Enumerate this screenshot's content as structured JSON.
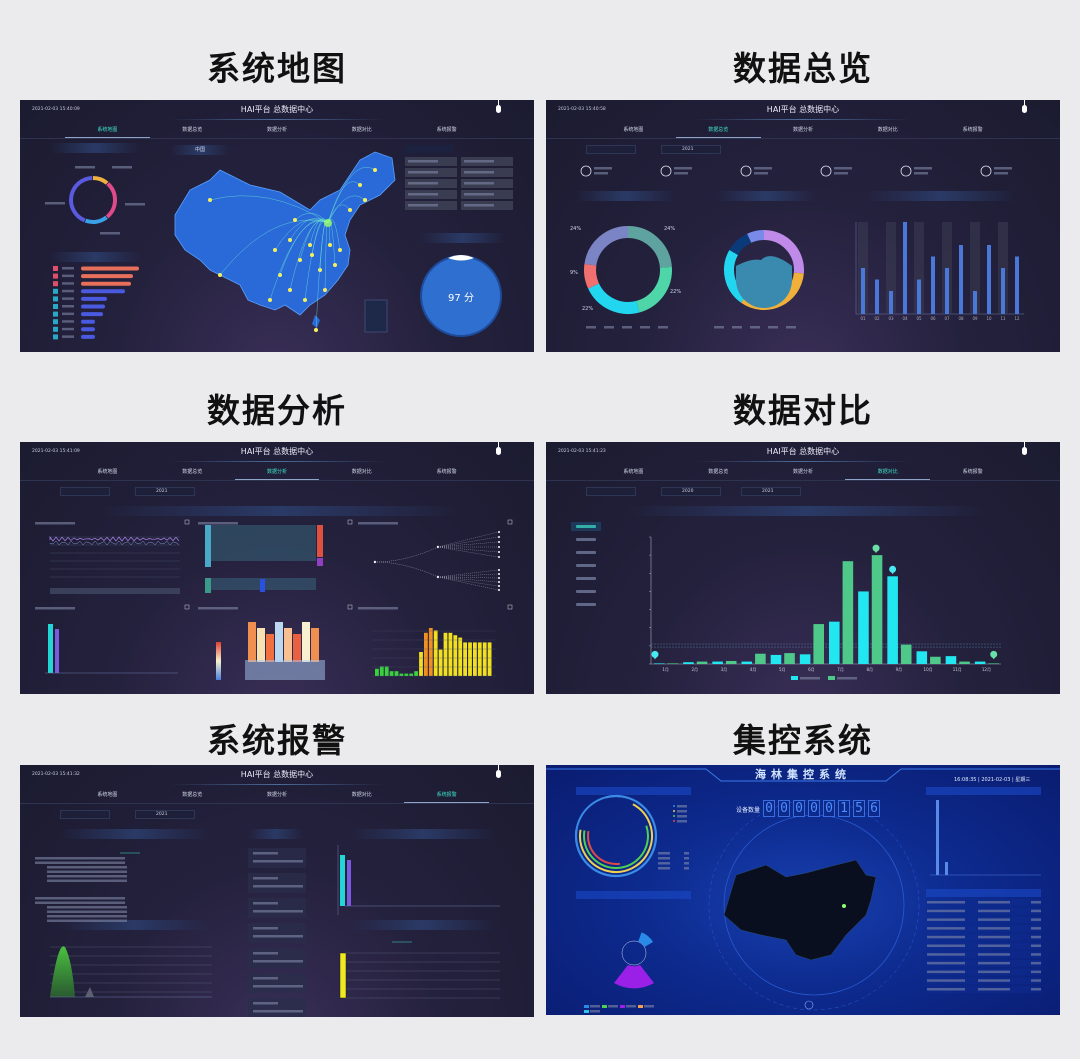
{
  "section_titles": [
    "系统地图",
    "数据总览",
    "数据分析",
    "数据对比",
    "系统报警",
    "集控系统"
  ],
  "dashboard": {
    "title": "HAI平台 总数据中心",
    "tabs": [
      "系统地图",
      "数据总览",
      "数据分析",
      "数据对比",
      "系统报警"
    ]
  },
  "screens": [
    {
      "id": "map",
      "timestamp": "2021-02-03 15:40:09",
      "active_tab": 0
    },
    {
      "id": "overview",
      "timestamp": "2021-02-03 15:40:58",
      "active_tab": 1
    },
    {
      "id": "analysis",
      "timestamp": "2021-02-03 15:41:09",
      "active_tab": 2
    },
    {
      "id": "compare",
      "timestamp": "2021-02-03 15:41:23",
      "active_tab": 3
    },
    {
      "id": "alarm",
      "timestamp": "2021-02-03 15:41:32",
      "active_tab": 4
    }
  ],
  "map_screen": {
    "map_label": "中国",
    "score": "97 分"
  },
  "overview_screen": {
    "year": "2021",
    "donut_labels": [
      "24%",
      "24%",
      "22%",
      "22%",
      "9%"
    ]
  },
  "analysis_screen": {
    "year": "2021"
  },
  "compare_screen": {
    "year_a": "2020",
    "year_b": "2021"
  },
  "alarm_screen": {
    "year": "2021"
  },
  "control_screen": {
    "title": "海林集控系统",
    "datetime": "16:08:35 | 2021-02-03 | 星期三",
    "device_count_label": "设备数量",
    "device_count_digits": [
      "0",
      "0",
      "0",
      "0",
      "0",
      "1",
      "5",
      "6"
    ]
  },
  "colors": {
    "accent": "#3fe0c8",
    "cyan": "#22e6f0",
    "green": "#4fc98a",
    "panel_bg": "#24213d",
    "control_bg": "#0d2a8e"
  },
  "chart_data": [
    {
      "id": "compare-bars",
      "type": "bar",
      "categories": [
        "1月",
        "2月",
        "3月",
        "4月",
        "5月",
        "6月",
        "7月",
        "8月",
        "9月",
        "10月",
        "11月",
        "12月"
      ],
      "series": [
        {
          "values": [
            1,
            3,
            4,
            4,
            15,
            16,
            70,
            120,
            145,
            21,
            13,
            4
          ],
          "color": "#22e6f0"
        },
        {
          "values": [
            1,
            4,
            5,
            17,
            18,
            66,
            170,
            180,
            32,
            12,
            4,
            1
          ],
          "color": "#4fc98a"
        }
      ],
      "ylim": [
        0,
        210
      ]
    },
    {
      "id": "overview-bars",
      "type": "bar",
      "categories": [
        "01",
        "02",
        "03",
        "04",
        "05",
        "06",
        "07",
        "08",
        "09",
        "10",
        "11",
        "12"
      ],
      "values": [
        4,
        3,
        2,
        8,
        3,
        5,
        4,
        6,
        2,
        6,
        4,
        5
      ],
      "ylim": [
        0,
        8
      ]
    }
  ]
}
